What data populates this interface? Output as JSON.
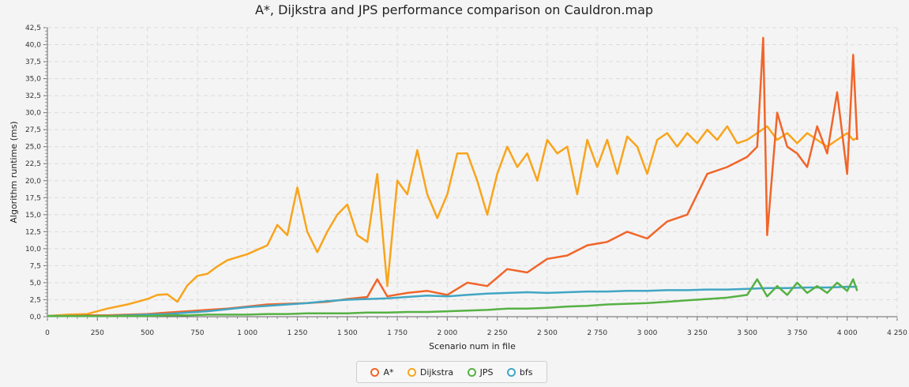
{
  "chart_data": {
    "type": "line",
    "title": "A*, Dijkstra and JPS performance comparison on Cauldron.map",
    "xlabel": "Scenario num in file",
    "ylabel": "Algorithm runtime (ms)",
    "xlim": [
      0,
      4250
    ],
    "ylim": [
      0,
      42.5
    ],
    "x_ticks": [
      0,
      250,
      500,
      750,
      1000,
      1250,
      1500,
      1750,
      2000,
      2250,
      2500,
      2750,
      3000,
      3250,
      3500,
      3750,
      4000,
      4250
    ],
    "x_tick_labels": [
      "0",
      "250",
      "500",
      "750",
      "1 000",
      "1 250",
      "1 500",
      "1 750",
      "2 000",
      "2 250",
      "2 500",
      "2 750",
      "3 000",
      "3 250",
      "3 500",
      "3 750",
      "4 000",
      "4 250"
    ],
    "y_ticks": [
      0,
      2.5,
      5,
      7.5,
      10,
      12.5,
      15,
      17.5,
      20,
      22.5,
      25,
      27.5,
      30,
      32.5,
      35,
      37.5,
      40,
      42.5
    ],
    "y_tick_labels": [
      "0,0",
      "2,5",
      "5,0",
      "7,5",
      "10,0",
      "12,5",
      "15,0",
      "17,5",
      "20,0",
      "22,5",
      "25,0",
      "27,5",
      "30,0",
      "32,5",
      "35,0",
      "37,5",
      "40,0",
      "42,5"
    ],
    "grid": true,
    "legend_position": "bottom",
    "series": [
      {
        "name": "A*",
        "color": "#f1652a",
        "x": [
          0,
          100,
          200,
          300,
          400,
          500,
          600,
          700,
          800,
          900,
          1000,
          1100,
          1200,
          1300,
          1400,
          1500,
          1600,
          1650,
          1700,
          1800,
          1900,
          2000,
          2100,
          2200,
          2300,
          2400,
          2500,
          2600,
          2700,
          2800,
          2900,
          3000,
          3100,
          3200,
          3300,
          3400,
          3500,
          3550,
          3580,
          3600,
          3650,
          3700,
          3750,
          3800,
          3850,
          3900,
          3950,
          4000,
          4030,
          4050
        ],
        "y": [
          0.1,
          0.1,
          0.2,
          0.2,
          0.3,
          0.4,
          0.6,
          0.8,
          1.0,
          1.2,
          1.5,
          1.8,
          1.9,
          2.0,
          2.2,
          2.6,
          2.9,
          5.5,
          3.0,
          3.5,
          3.8,
          3.2,
          5.0,
          4.5,
          7.0,
          6.5,
          8.5,
          9.0,
          10.5,
          11.0,
          12.5,
          11.5,
          14.0,
          15.0,
          21.0,
          22.0,
          23.5,
          25.0,
          41.0,
          12.0,
          30.0,
          25.0,
          24.0,
          22.0,
          28.0,
          24.0,
          33.0,
          21.0,
          38.5,
          26.0
        ]
      },
      {
        "name": "Dijkstra",
        "color": "#f9a41c",
        "x": [
          0,
          100,
          200,
          250,
          300,
          400,
          500,
          550,
          600,
          650,
          700,
          750,
          800,
          850,
          900,
          1000,
          1100,
          1150,
          1200,
          1250,
          1300,
          1350,
          1400,
          1450,
          1500,
          1550,
          1600,
          1650,
          1700,
          1750,
          1800,
          1850,
          1900,
          1950,
          2000,
          2050,
          2100,
          2150,
          2200,
          2250,
          2300,
          2350,
          2400,
          2450,
          2500,
          2550,
          2600,
          2650,
          2700,
          2750,
          2800,
          2850,
          2900,
          2950,
          3000,
          3050,
          3100,
          3150,
          3200,
          3250,
          3300,
          3350,
          3400,
          3450,
          3500,
          3550,
          3600,
          3650,
          3700,
          3750,
          3800,
          3850,
          3900,
          3950,
          4000,
          4030,
          4050
        ],
        "y": [
          0.1,
          0.3,
          0.4,
          0.8,
          1.2,
          1.8,
          2.6,
          3.2,
          3.3,
          2.2,
          4.6,
          6.0,
          6.3,
          7.4,
          8.3,
          9.2,
          10.5,
          13.5,
          12.0,
          19.0,
          12.5,
          9.5,
          12.5,
          15.0,
          16.5,
          12.0,
          11.0,
          21.0,
          4.5,
          20.0,
          18.0,
          24.5,
          18.0,
          14.5,
          18.0,
          24.0,
          24.0,
          20.0,
          15.0,
          21.0,
          25.0,
          22.0,
          24.0,
          20.0,
          26.0,
          24.0,
          25.0,
          18.0,
          26.0,
          22.0,
          26.0,
          21.0,
          26.5,
          25.0,
          21.0,
          26.0,
          27.0,
          25.0,
          27.0,
          25.5,
          27.5,
          26.0,
          28.0,
          25.5,
          26.0,
          27.0,
          28.0,
          26.0,
          27.0,
          25.5,
          27.0,
          26.0,
          25.0,
          26.0,
          27.0,
          26.0,
          26.3
        ]
      },
      {
        "name": "JPS",
        "color": "#56b144",
        "x": [
          0,
          100,
          200,
          300,
          400,
          500,
          600,
          700,
          800,
          900,
          1000,
          1100,
          1200,
          1300,
          1400,
          1500,
          1600,
          1700,
          1800,
          1900,
          2000,
          2100,
          2200,
          2300,
          2400,
          2500,
          2600,
          2700,
          2800,
          2900,
          3000,
          3100,
          3200,
          3300,
          3400,
          3500,
          3550,
          3600,
          3650,
          3700,
          3750,
          3800,
          3850,
          3900,
          3950,
          4000,
          4030,
          4050
        ],
        "y": [
          0.1,
          0.1,
          0.1,
          0.1,
          0.1,
          0.1,
          0.2,
          0.2,
          0.3,
          0.3,
          0.3,
          0.4,
          0.4,
          0.5,
          0.5,
          0.5,
          0.6,
          0.6,
          0.7,
          0.7,
          0.8,
          0.9,
          1.0,
          1.2,
          1.2,
          1.3,
          1.5,
          1.6,
          1.8,
          1.9,
          2.0,
          2.2,
          2.4,
          2.6,
          2.8,
          3.2,
          5.5,
          3.0,
          4.5,
          3.2,
          5.0,
          3.5,
          4.5,
          3.5,
          5.0,
          3.8,
          5.5,
          3.8
        ]
      },
      {
        "name": "bfs",
        "color": "#41a6c4",
        "x": [
          0,
          100,
          200,
          300,
          400,
          500,
          600,
          700,
          800,
          900,
          1000,
          1100,
          1200,
          1300,
          1400,
          1500,
          1600,
          1700,
          1800,
          1900,
          2000,
          2100,
          2200,
          2300,
          2400,
          2500,
          2600,
          2700,
          2800,
          2900,
          3000,
          3100,
          3200,
          3300,
          3400,
          3500,
          3600,
          3700,
          3800,
          3900,
          4000,
          4050
        ],
        "y": [
          0.1,
          0.1,
          0.1,
          0.1,
          0.2,
          0.3,
          0.4,
          0.6,
          0.8,
          1.1,
          1.4,
          1.6,
          1.8,
          2.0,
          2.3,
          2.5,
          2.6,
          2.7,
          2.9,
          3.1,
          3.0,
          3.2,
          3.4,
          3.5,
          3.6,
          3.5,
          3.6,
          3.7,
          3.7,
          3.8,
          3.8,
          3.9,
          3.9,
          4.0,
          4.0,
          4.1,
          4.2,
          4.2,
          4.3,
          4.3,
          4.4,
          4.4
        ]
      }
    ]
  }
}
